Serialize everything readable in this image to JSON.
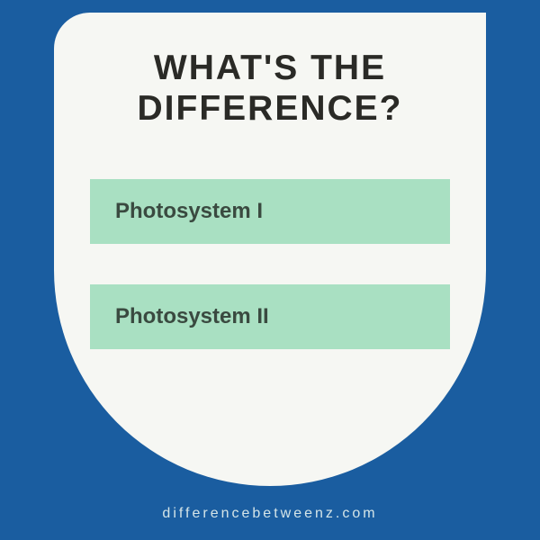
{
  "title_line1": "WHAT'S THE",
  "title_line2": "DIFFERENCE?",
  "item1": "Photosystem I",
  "item2": "Photosystem II",
  "footer": "differencebetweenz.com",
  "colors": {
    "background": "#1a5da0",
    "panel": "#f6f7f3",
    "title": "#2a2a26",
    "item_bg": "#a9e0c2",
    "item_text": "#3a4a40",
    "footer": "#d5e5e8"
  },
  "typography": {
    "title_fontsize": 39,
    "item_fontsize": 24,
    "footer_fontsize": 16
  }
}
